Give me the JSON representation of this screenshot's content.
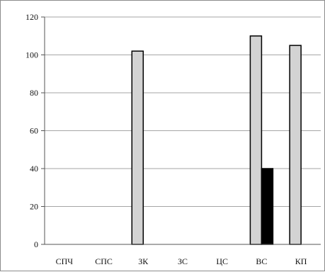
{
  "chart_data": {
    "type": "bar",
    "title": "",
    "xlabel": "",
    "ylabel": "",
    "categories": [
      "СПЧ",
      "СПС",
      "ЗК",
      "ЗС",
      "ЦС",
      "ВС",
      "КП"
    ],
    "series": [
      {
        "values": [
          0,
          0,
          102,
          0,
          0,
          110,
          105
        ],
        "color": "#d3d3d3"
      },
      {
        "values": [
          0,
          0,
          0,
          0,
          0,
          40,
          0
        ],
        "color": "#000000"
      }
    ],
    "ylim": [
      0,
      120
    ],
    "yticks": [
      0,
      20,
      40,
      60,
      80,
      100,
      120
    ],
    "grid": true,
    "legend": "none"
  }
}
